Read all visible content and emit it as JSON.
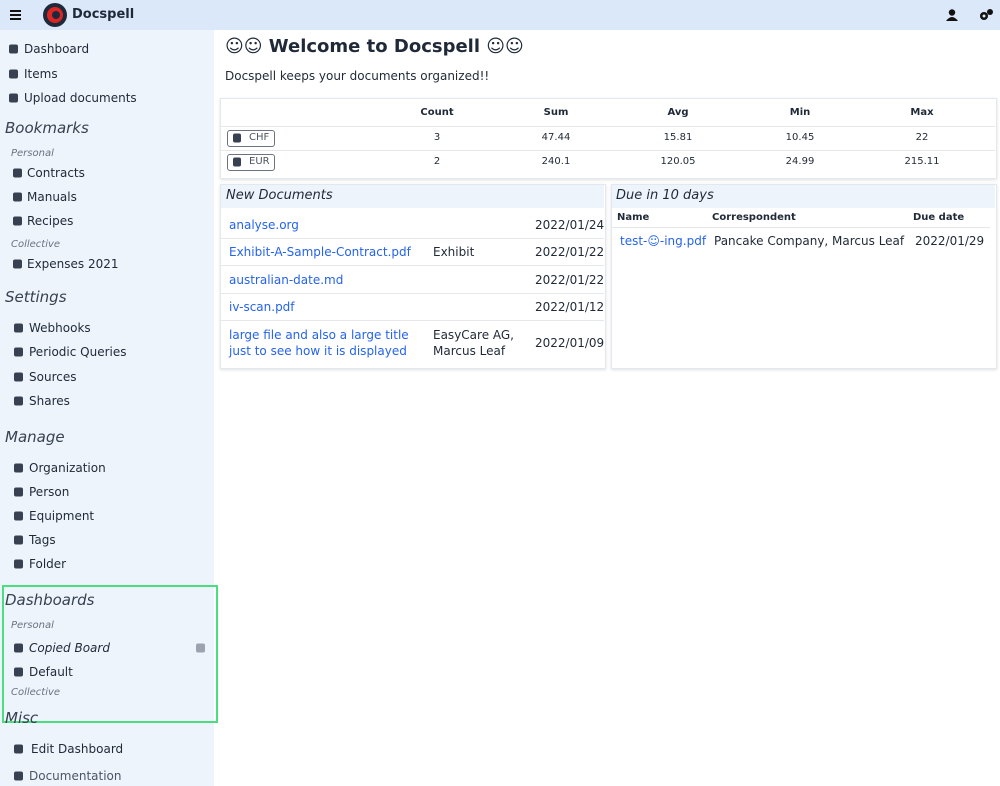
{
  "header": {
    "app_name": "Docspell"
  },
  "sidebar": {
    "nav": [
      "Dashboard",
      "Items",
      "Upload documents"
    ],
    "bookmarks": {
      "title": "Bookmarks",
      "personal_label": "Personal",
      "personal": [
        "Contracts",
        "Manuals",
        "Recipes"
      ],
      "collective_label": "Collective",
      "collective": [
        "Expenses 2021"
      ]
    },
    "settings": {
      "title": "Settings",
      "items": [
        "Webhooks",
        "Periodic Queries",
        "Sources",
        "Shares"
      ]
    },
    "manage": {
      "title": "Manage",
      "items": [
        "Organization",
        "Person",
        "Equipment",
        "Tags",
        "Folder"
      ]
    },
    "dashboards": {
      "title": "Dashboards",
      "personal_label": "Personal",
      "personal": [
        "Copied Board",
        "Default"
      ],
      "collective_label": "Collective"
    },
    "misc": {
      "title": "Misc",
      "items": [
        "Edit Dashboard",
        "Documentation"
      ]
    }
  },
  "main": {
    "title": "☺☺ Welcome to Docspell ☺☺",
    "subtitle": "Docspell keeps your documents organized!!",
    "summary": {
      "columns": [
        "Count",
        "Sum",
        "Avg",
        "Min",
        "Max"
      ],
      "rows": [
        [
          "CHF",
          3,
          47.44,
          15.81,
          10.45,
          22
        ],
        [
          "EUR",
          2,
          240.1,
          120.05,
          24.99,
          215.11
        ]
      ]
    },
    "new_documents": {
      "title": "New Documents",
      "rows": [
        {
          "name": "analyse.org",
          "date": "2022/01/24"
        },
        {
          "name": "Exhibit-A-Sample-Contract.pdf",
          "correspondent": "Exhibit",
          "date": "2022/01/22"
        },
        {
          "name": "australian-date.md",
          "date": "2022/01/22"
        },
        {
          "name": "iv-scan.pdf",
          "date": "2022/01/12"
        },
        {
          "name": "large file and also a large title just to see how it is displayed",
          "correspondent": "EasyCare AG, Marcus Leaf",
          "date": "2022/01/09"
        }
      ]
    },
    "due": {
      "title": "Due in 10 days",
      "columns": [
        "Name",
        "Correspondent",
        "Due date"
      ],
      "rows": [
        [
          "test-☺-ing.pdf",
          "Pancake Company, Marcus Leaf",
          "2022/01/29"
        ]
      ]
    }
  }
}
